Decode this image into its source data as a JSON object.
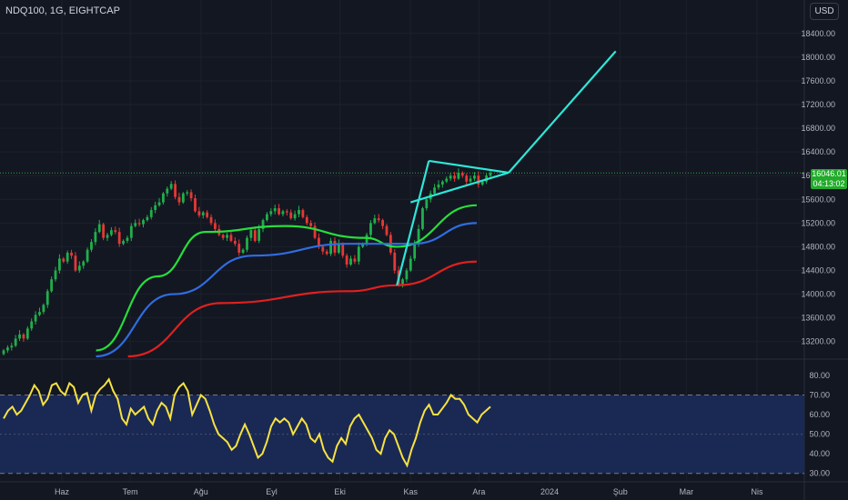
{
  "header": {
    "symbol": "NDQ100, 1G, EIGHTCAP",
    "currency": "USD"
  },
  "price_tag": {
    "price": "16046.01",
    "countdown": "04:13:02",
    "color": "#22ab2a"
  },
  "chart_data": [
    {
      "type": "candlestick",
      "title": "",
      "x_ticks": [
        "Haz",
        "Tem",
        "Ağu",
        "Eyl",
        "Eki",
        "Kas",
        "Ara",
        "2024",
        "Şub",
        "Mar",
        "Nis"
      ],
      "y_ticks": [
        13200,
        13600,
        14000,
        14400,
        14800,
        15200,
        15600,
        16000,
        16400,
        16800,
        17200,
        17600,
        18000,
        18400
      ],
      "ylim": [
        12950,
        18750
      ],
      "current_price": 16046.01,
      "close_series": [
        13050,
        13100,
        13130,
        13250,
        13320,
        13250,
        13420,
        13540,
        13650,
        13700,
        13820,
        14050,
        14250,
        14400,
        14600,
        14550,
        14700,
        14650,
        14400,
        14480,
        14550,
        14750,
        14880,
        15050,
        15180,
        14950,
        15000,
        15080,
        15050,
        14850,
        14900,
        14950,
        15150,
        15200,
        15180,
        15250,
        15300,
        15420,
        15500,
        15550,
        15700,
        15780,
        15860,
        15640,
        15550,
        15700,
        15720,
        15620,
        15400,
        15330,
        15380,
        15300,
        15200,
        15100,
        15000,
        14950,
        15000,
        14900,
        14850,
        14700,
        14750,
        14950,
        15080,
        14900,
        15100,
        15250,
        15350,
        15400,
        15450,
        15350,
        15400,
        15380,
        15280,
        15350,
        15420,
        15300,
        15200,
        15150,
        14950,
        14800,
        14720,
        14680,
        14900,
        14700,
        14850,
        14650,
        14500,
        14600,
        14550,
        14800,
        14850,
        15000,
        15200,
        15280,
        15250,
        15150,
        15000,
        14700,
        14400,
        14150,
        14250,
        14400,
        14600,
        14850,
        15100,
        15450,
        15600,
        15700,
        15800,
        15850,
        15900,
        15950,
        16000,
        15950,
        16050,
        16000,
        15900,
        15950,
        16000,
        15850,
        15900,
        16000,
        16046
      ],
      "moving_averages": [
        {
          "color": "#26de3b",
          "values": [
            {
              "x": "2023-06-16",
              "y": 13050
            },
            {
              "x": "2023-07-13",
              "y": 14300
            },
            {
              "x": "2023-08-03",
              "y": 15050
            },
            {
              "x": "2023-09-07",
              "y": 15150
            },
            {
              "x": "2023-10-12",
              "y": 14950
            },
            {
              "x": "2023-10-26",
              "y": 14800
            },
            {
              "x": "2023-11-30",
              "y": 15500
            }
          ]
        },
        {
          "color": "#2f6de1",
          "values": [
            {
              "x": "2023-06-16",
              "y": 12950
            },
            {
              "x": "2023-07-20",
              "y": 14000
            },
            {
              "x": "2023-08-24",
              "y": 14650
            },
            {
              "x": "2023-10-05",
              "y": 14850
            },
            {
              "x": "2023-11-02",
              "y": 14850
            },
            {
              "x": "2023-11-30",
              "y": 15200
            }
          ]
        },
        {
          "color": "#e0201f",
          "values": [
            {
              "x": "2023-06-30",
              "y": 12950
            },
            {
              "x": "2023-08-10",
              "y": 13850
            },
            {
              "x": "2023-10-05",
              "y": 14050
            },
            {
              "x": "2023-10-26",
              "y": 14150
            },
            {
              "x": "2023-11-30",
              "y": 14550
            }
          ]
        }
      ],
      "drawings": {
        "color": "#2ee6d6",
        "flag_pole": [
          {
            "x": "2023-10-26",
            "y": 14150
          },
          {
            "x": "2023-11-09",
            "y": 16250
          }
        ],
        "flag_upper": [
          {
            "x": "2023-11-09",
            "y": 16250
          },
          {
            "x": "2023-12-14",
            "y": 16050
          }
        ],
        "flag_lower": [
          {
            "x": "2023-11-01",
            "y": 15550
          },
          {
            "x": "2023-12-14",
            "y": 16050
          }
        ],
        "target": [
          {
            "x": "2023-12-14",
            "y": 16050
          },
          {
            "x": "2024-01-30",
            "y": 18100
          }
        ]
      }
    },
    {
      "type": "line",
      "title": "",
      "y_ticks": [
        30,
        40,
        50,
        60,
        70,
        80
      ],
      "ylim": [
        28,
        86
      ],
      "band": [
        30,
        70
      ],
      "series": [
        {
          "color": "#f7e241",
          "values": [
            58,
            62,
            64,
            60,
            62,
            66,
            70,
            75,
            72,
            65,
            68,
            75,
            76,
            72,
            70,
            76,
            74,
            66,
            70,
            71,
            62,
            70,
            73,
            75,
            78,
            72,
            68,
            58,
            55,
            63,
            60,
            62,
            64,
            58,
            55,
            62,
            66,
            64,
            58,
            70,
            74,
            76,
            72,
            60,
            65,
            70,
            68,
            62,
            55,
            50,
            48,
            46,
            42,
            44,
            50,
            55,
            50,
            44,
            38,
            40,
            46,
            54,
            58,
            56,
            58,
            56,
            50,
            54,
            58,
            55,
            48,
            46,
            50,
            42,
            38,
            36,
            44,
            48,
            45,
            54,
            58,
            60,
            56,
            52,
            48,
            42,
            40,
            48,
            52,
            50,
            44,
            38,
            34,
            42,
            48,
            56,
            62,
            65,
            60,
            60,
            63,
            66,
            70,
            68,
            68,
            65,
            60,
            58,
            56,
            60,
            62,
            64
          ]
        }
      ]
    }
  ]
}
